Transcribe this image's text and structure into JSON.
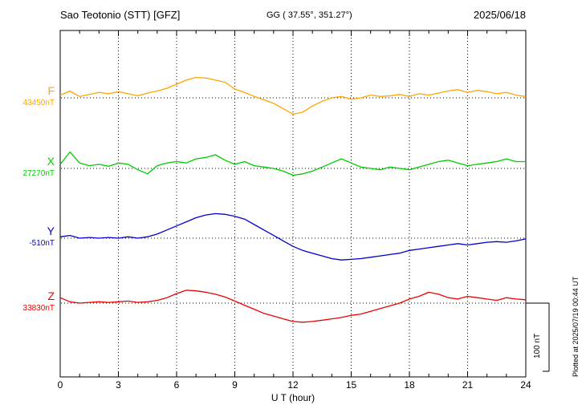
{
  "header": {
    "station": "Sao Teotonio (STT)  [GFZ]",
    "coords": "GG ( 37.55°, 351.27°)",
    "date": "2025/06/18"
  },
  "axis": {
    "xticks": [
      0,
      3,
      6,
      9,
      12,
      15,
      18,
      21,
      24
    ],
    "grid_hours": [
      3,
      6,
      9,
      12,
      15,
      18,
      21
    ],
    "xlabel": "U T (hour)"
  },
  "scalebar": {
    "label": "100 nT",
    "nT": 100
  },
  "watermark": "Plotted at 2025/07/19 00:44 UT",
  "chart_data": {
    "type": "line",
    "title": "Magnetogram Sao Teotonio (STT) [GFZ] 2025/06/18",
    "xlabel": "U T (hour)",
    "xlim": [
      0,
      24
    ],
    "x_step_hours": 0.5,
    "grid": "dotted vertical every 3 h, dotted horizontal baseline per component",
    "scale_nT_per_div": 100,
    "note": "values are offsets in nT from each component baseline",
    "series": [
      {
        "name": "F",
        "baseline_label": "43450nT",
        "baseline_nT": 43450,
        "color": "#FFA500",
        "values": [
          4,
          10,
          2,
          5,
          8,
          6,
          9,
          6,
          3,
          7,
          10,
          14,
          20,
          26,
          30,
          29,
          26,
          23,
          13,
          8,
          2,
          -3,
          -8,
          -16,
          -24,
          -21,
          -12,
          -5,
          0,
          2,
          -2,
          0,
          4,
          2,
          3,
          5,
          2,
          6,
          4,
          7,
          10,
          12,
          8,
          11,
          9,
          6,
          8,
          4,
          2
        ]
      },
      {
        "name": "X",
        "baseline_label": "27270nT",
        "baseline_nT": 27270,
        "color": "#00CC00",
        "values": [
          6,
          24,
          8,
          4,
          6,
          3,
          8,
          6,
          -2,
          -8,
          4,
          8,
          10,
          8,
          14,
          16,
          20,
          12,
          6,
          10,
          4,
          2,
          0,
          -4,
          -10,
          -8,
          -4,
          2,
          8,
          14,
          8,
          2,
          0,
          -2,
          2,
          0,
          -2,
          2,
          6,
          10,
          12,
          8,
          4,
          6,
          8,
          10,
          14,
          10,
          10
        ]
      },
      {
        "name": "Y",
        "baseline_label": "-510nT",
        "baseline_nT": -510,
        "color": "#0000CC",
        "values": [
          2,
          4,
          0,
          1,
          0,
          1,
          0,
          2,
          0,
          2,
          6,
          12,
          18,
          24,
          30,
          34,
          36,
          35,
          32,
          28,
          20,
          12,
          4,
          -4,
          -12,
          -18,
          -22,
          -26,
          -30,
          -32,
          -31,
          -30,
          -28,
          -26,
          -24,
          -22,
          -18,
          -16,
          -14,
          -12,
          -10,
          -8,
          -10,
          -8,
          -6,
          -5,
          -6,
          -4,
          -1
        ]
      },
      {
        "name": "Z",
        "baseline_label": "33830nT",
        "baseline_nT": 33830,
        "color": "#EE0000",
        "values": [
          8,
          2,
          0,
          1,
          2,
          1,
          2,
          3,
          1,
          2,
          4,
          8,
          14,
          19,
          18,
          16,
          13,
          9,
          3,
          -3,
          -9,
          -15,
          -19,
          -23,
          -27,
          -28,
          -27,
          -25,
          -23,
          -21,
          -18,
          -16,
          -12,
          -8,
          -4,
          0,
          6,
          10,
          16,
          13,
          8,
          6,
          10,
          8,
          6,
          4,
          8,
          6,
          5
        ]
      }
    ]
  }
}
